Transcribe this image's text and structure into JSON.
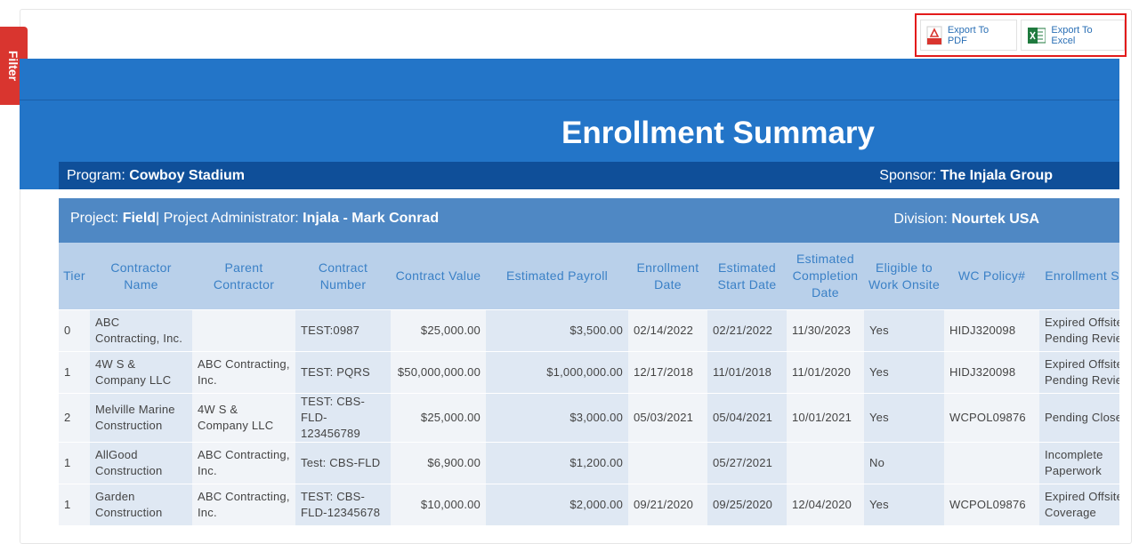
{
  "filter_tab": "Filter",
  "export": {
    "pdf": "Export To PDF",
    "excel": "Export To Excel"
  },
  "report": {
    "title": "Enrollment Summary",
    "program": {
      "label": "Program:",
      "value": "Cowboy Stadium"
    },
    "sponsor": {
      "label": "Sponsor:",
      "value": "The Injala Group"
    },
    "project": {
      "label": "Project:",
      "value": "Field",
      "separator": "|"
    },
    "administrator": {
      "label": "Project Administrator:",
      "value": "Injala - Mark Conrad"
    },
    "division": {
      "label": "Division:",
      "value": "Nourtek USA"
    }
  },
  "table": {
    "headers": [
      "Tier",
      "Contractor Name",
      "Parent Contractor",
      "Contract Number",
      "Contract Value",
      "Estimated Payroll",
      "Enrollment Date",
      "Estimated Start Date",
      "Estimated Completion Date",
      "Eligible to Work Onsite",
      "WC Policy#",
      "Enrollment Status"
    ],
    "rows": [
      [
        "0",
        "ABC Contracting, Inc.",
        null,
        "TEST:0987",
        "$25,000.00",
        "$3,500.00",
        "02/14/2022",
        "02/21/2022",
        "11/30/2023",
        "Yes",
        "HIDJ320098",
        "Expired Offsite Pending Review"
      ],
      [
        "1",
        "4W S & Company LLC",
        "ABC Contracting, Inc.",
        "TEST: PQRS",
        "$50,000,000.00",
        "$1,000,000.00",
        "12/17/2018",
        "11/01/2018",
        "11/01/2020",
        "Yes",
        "HIDJ320098",
        "Expired Offsite Pending Review"
      ],
      [
        "2",
        "Melville Marine Construction",
        "4W S & Company LLC",
        "TEST: CBS-FLD-123456789",
        "$25,000.00",
        "$3,000.00",
        "05/03/2021",
        "05/04/2021",
        "10/01/2021",
        "Yes",
        "WCPOL09876",
        "Pending Closeout"
      ],
      [
        "1",
        "AllGood Construction",
        "ABC Contracting, Inc.",
        "Test: CBS-FLD",
        "$6,900.00",
        "$1,200.00",
        null,
        "05/27/2021",
        null,
        "No",
        null,
        "Incomplete Paperwork"
      ],
      [
        "1",
        "Garden Construction",
        "ABC Contracting, Inc.",
        "TEST: CBS-FLD-12345678",
        "$10,000.00",
        "$2,000.00",
        "09/21/2020",
        "09/25/2020",
        "12/04/2020",
        "Yes",
        "WCPOL09876",
        "Expired Offsite Coverage"
      ]
    ]
  }
}
